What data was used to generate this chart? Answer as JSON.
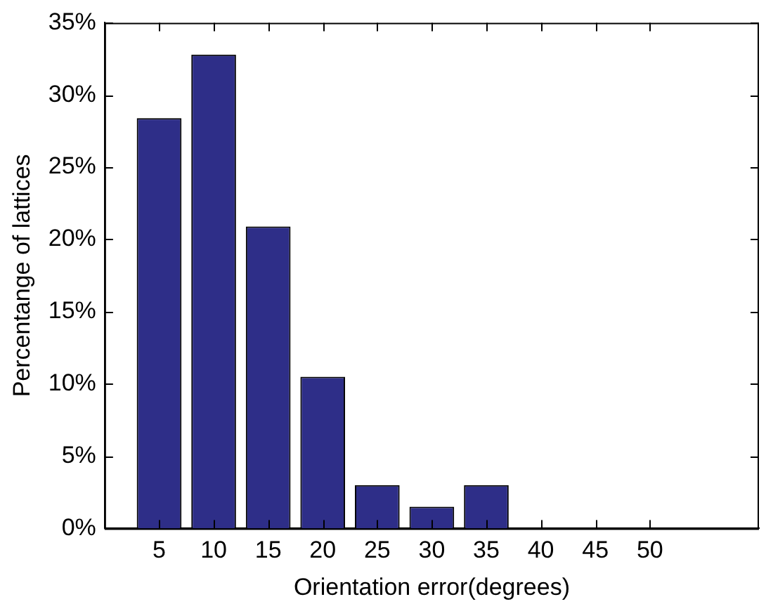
{
  "chart_data": {
    "type": "bar",
    "xlabel": "Orientation error(degrees)",
    "ylabel": "Percentange of lattices",
    "x": [
      5,
      10,
      15,
      20,
      25,
      30,
      35,
      40,
      45,
      50
    ],
    "series": [
      {
        "color": "#2e2e88",
        "values": [
          28.4,
          32.8,
          20.9,
          10.5,
          3.0,
          1.5,
          3.0,
          0,
          0,
          0
        ]
      }
    ],
    "xlim": [
      0,
      60
    ],
    "xticks": [
      5,
      10,
      15,
      20,
      25,
      30,
      35,
      40,
      45,
      50
    ],
    "ylim": [
      0,
      35
    ],
    "yticks": [
      {
        "value": 0,
        "label": "0%"
      },
      {
        "value": 5,
        "label": "5%"
      },
      {
        "value": 10,
        "label": "10%"
      },
      {
        "value": 15,
        "label": "15%"
      },
      {
        "value": 20,
        "label": "20%"
      },
      {
        "value": 25,
        "label": "25%"
      },
      {
        "value": 30,
        "label": "30%"
      },
      {
        "value": 35,
        "label": "35%"
      }
    ],
    "grid": false,
    "legend": false
  }
}
